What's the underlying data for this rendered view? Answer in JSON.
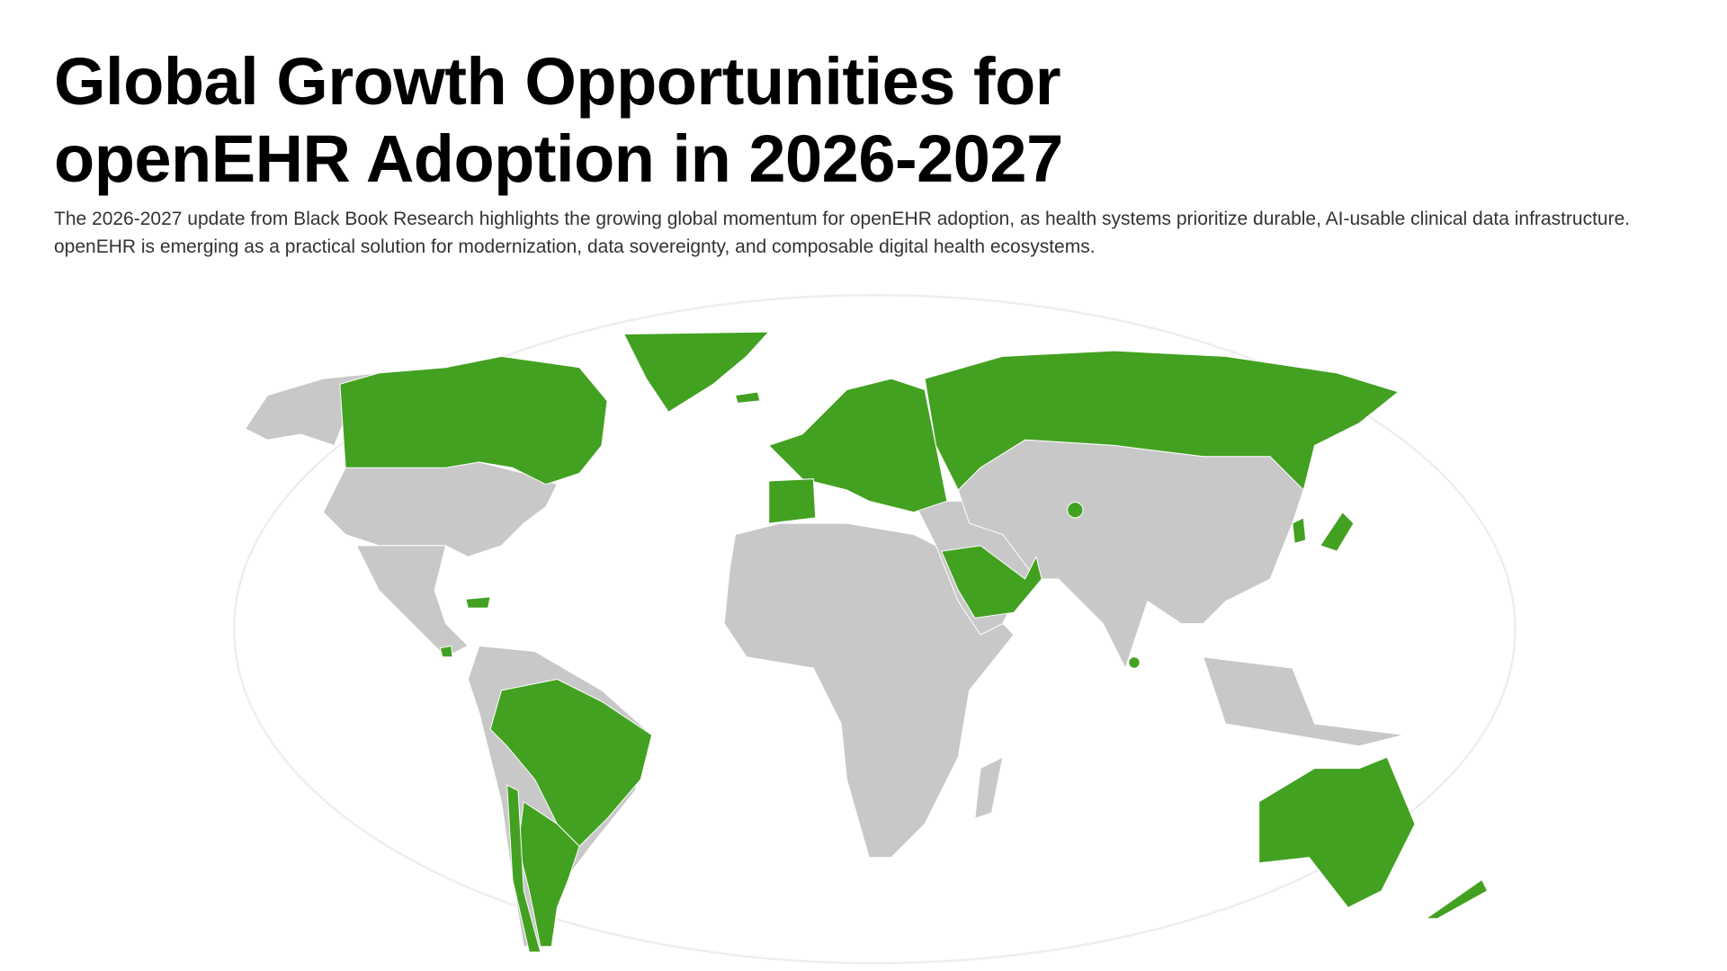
{
  "header": {
    "title": "Global Growth Opportunities for openEHR Adoption in 2026-2027",
    "description": "The 2026-2027 update from Black Book Research highlights the growing global momentum for openEHR adoption, as health systems prioritize durable, AI-usable clinical data infrastructure. openEHR is emerging as a practical solution for modernization, data sovereignty, and composable digital health ecosystems."
  },
  "map": {
    "colors": {
      "highlighted": "#43a121",
      "other": "#c8c8c8",
      "background": "#ffffff"
    },
    "highlighted_regions": [
      "Canada",
      "Greenland",
      "Iceland",
      "Europe",
      "Spain",
      "Russia",
      "Saudi Arabia",
      "United Arab Emirates",
      "Kyrgyzstan",
      "South Korea",
      "Japan",
      "Sri Lanka",
      "Caribbean",
      "Costa Rica",
      "Brazil",
      "Argentina",
      "Chile",
      "Uruguay",
      "Australia",
      "New Zealand"
    ]
  }
}
